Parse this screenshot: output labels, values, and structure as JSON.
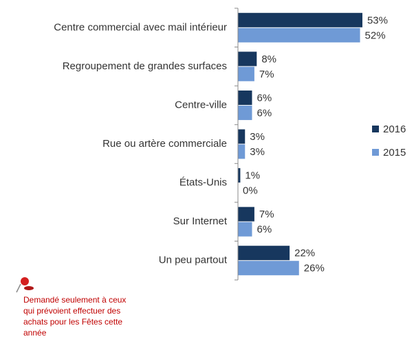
{
  "chart_data": {
    "type": "hbar",
    "categories": [
      "Centre commercial avec mail intérieur",
      "Regroupement de grandes surfaces",
      "Centre-ville",
      "Rue ou artère commerciale",
      "États-Unis",
      "Sur Internet",
      "Un peu partout"
    ],
    "series": [
      {
        "name": "2016",
        "color": "#17375e",
        "values": [
          53,
          8,
          6,
          3,
          1,
          7,
          22
        ],
        "value_labels": [
          "53%",
          "8%",
          "6%",
          "3%",
          "1%",
          "7%",
          "22%"
        ]
      },
      {
        "name": "2015",
        "color": "#6f9ad6",
        "values": [
          52,
          7,
          6,
          3,
          0,
          6,
          26
        ],
        "value_labels": [
          "52%",
          "7%",
          "6%",
          "3%",
          "0%",
          "6%",
          "26%"
        ]
      }
    ],
    "xlim": [
      0,
      70
    ],
    "legend": "right",
    "note": [
      "Demandé seulement à ceux",
      "qui prévoient effectuer des",
      "achats pour les Fêtes cette",
      "année"
    ]
  }
}
